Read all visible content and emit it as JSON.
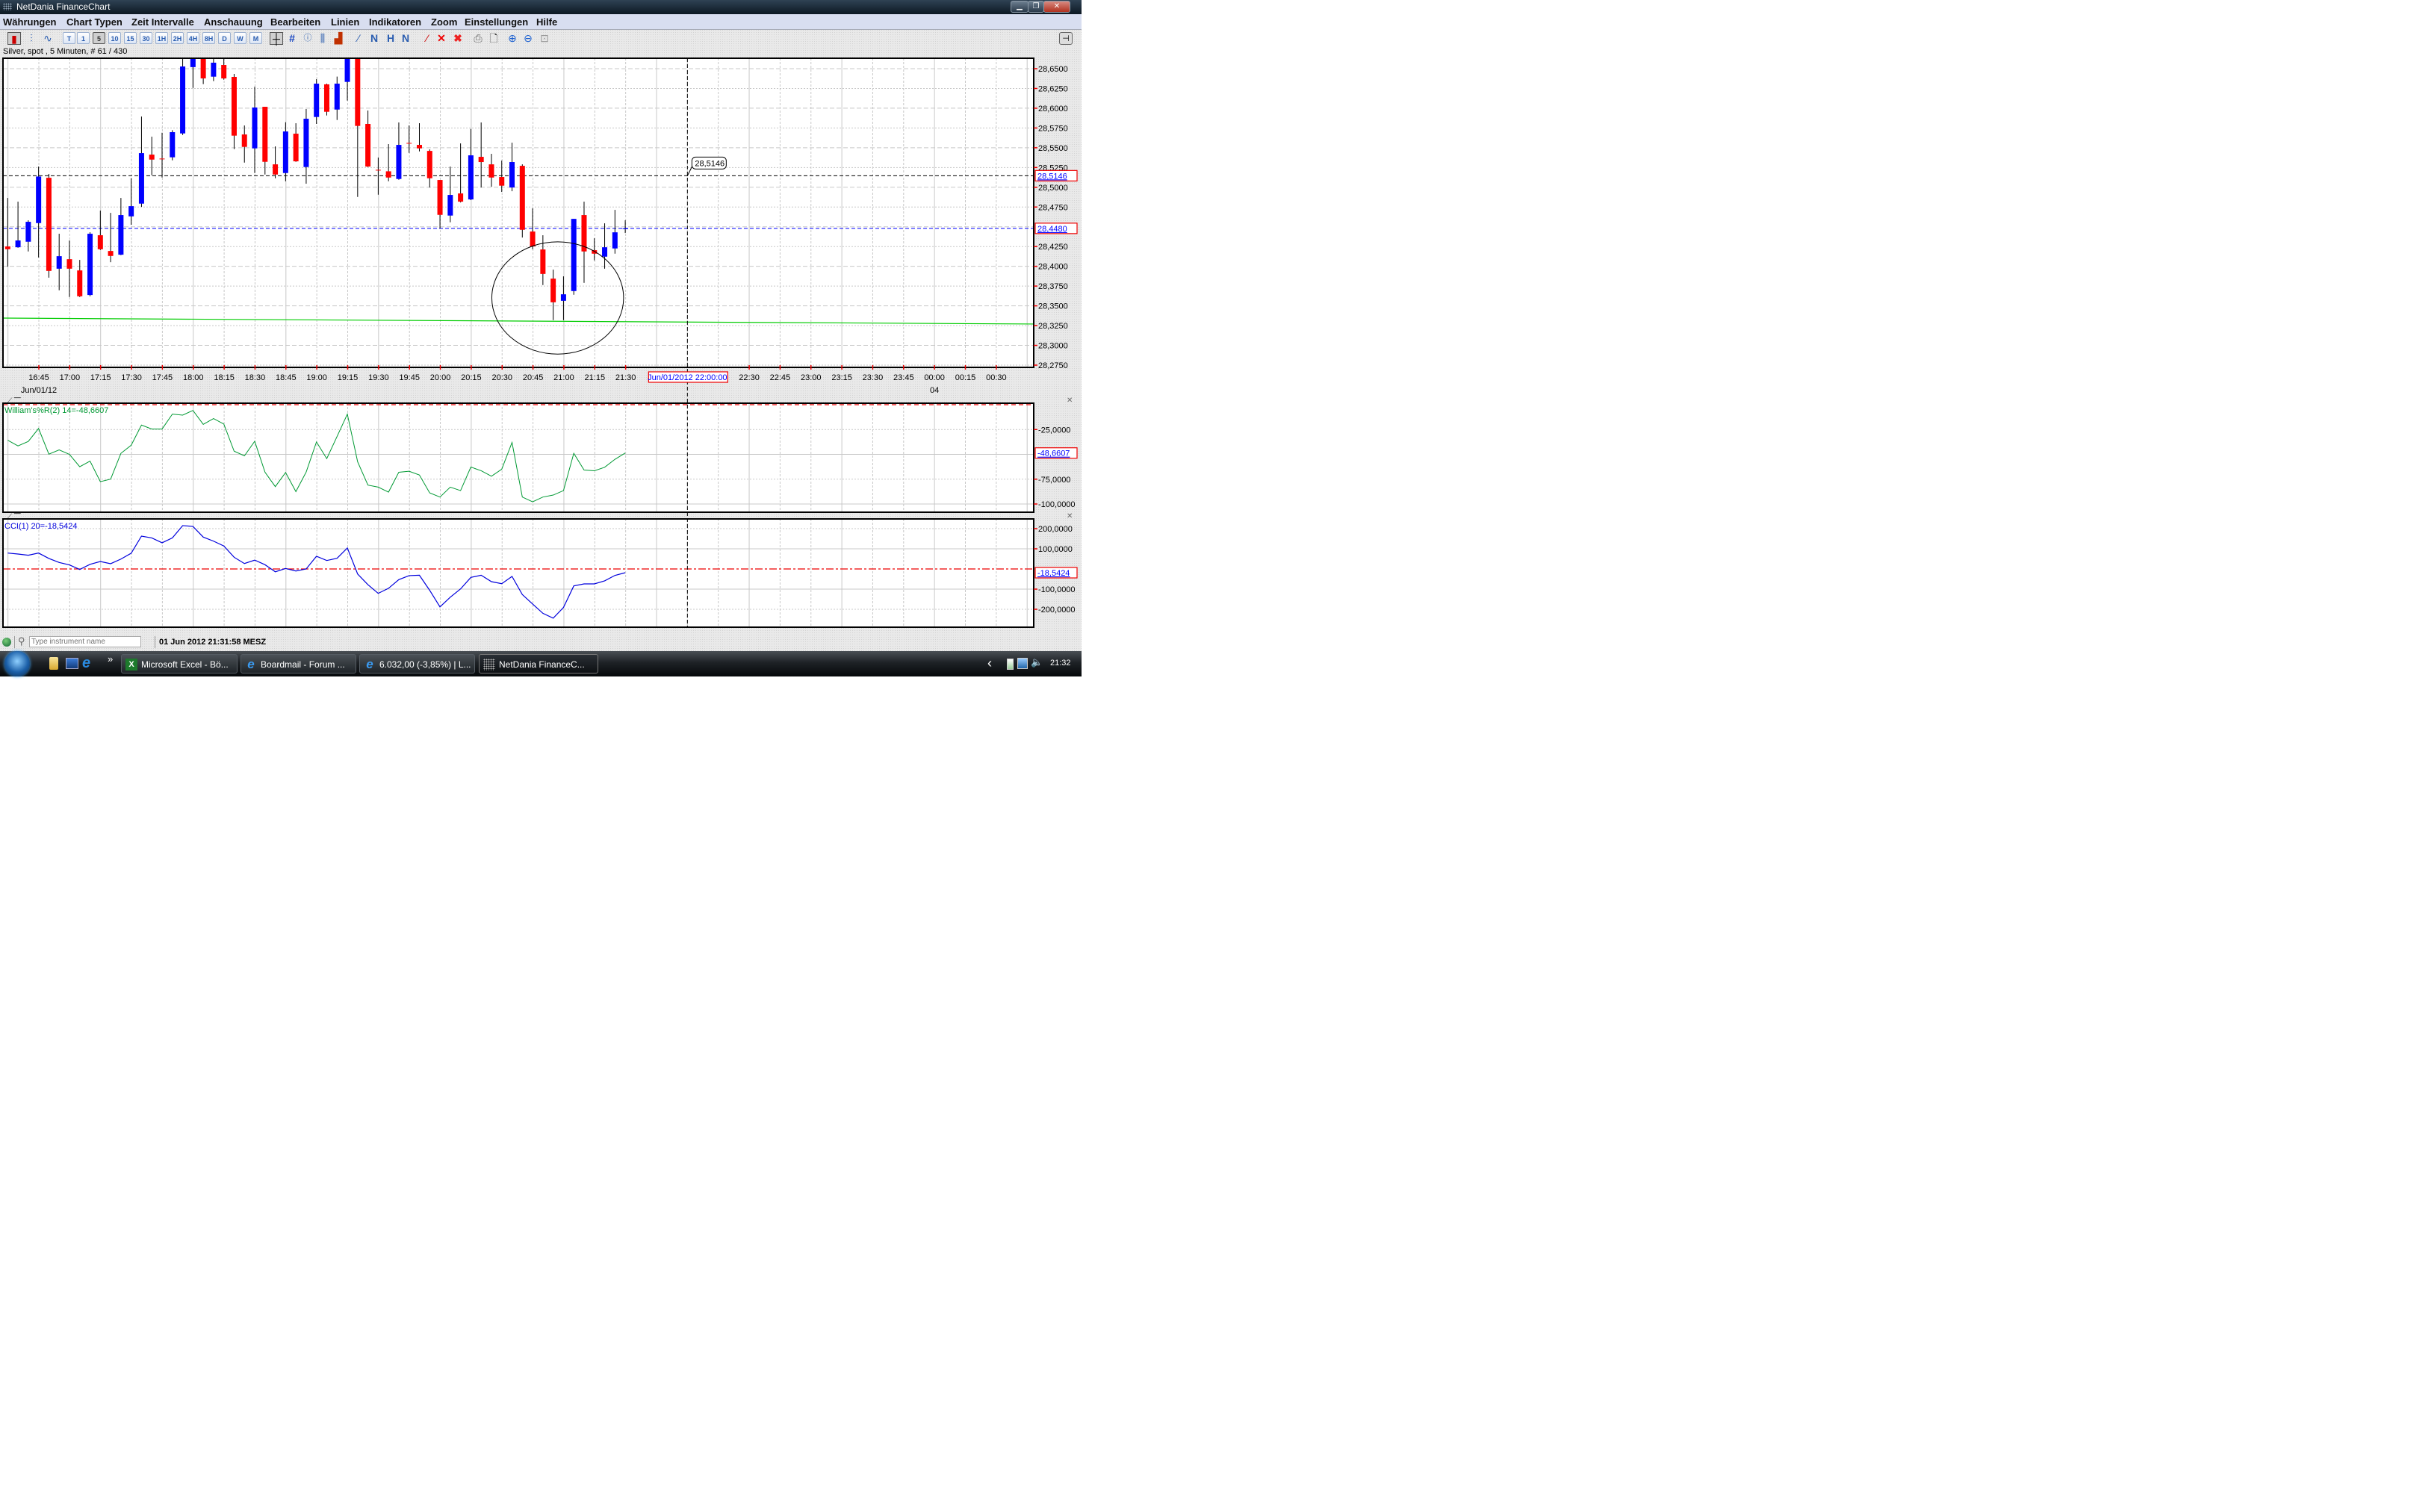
{
  "window": {
    "title": "NetDania FinanceChart",
    "buttons": [
      "minimize",
      "restore",
      "close"
    ]
  },
  "menu": [
    "Währungen",
    "Chart Typen",
    "Zeit Intervalle",
    "Anschauung",
    "Bearbeiten",
    "Linien",
    "Indikatoren",
    "Zoom",
    "Einstellungen",
    "Hilfe"
  ],
  "toolbar": {
    "chart_type_icons": [
      "candlestick-icon",
      "bar-chart-icon",
      "line-chart-icon"
    ],
    "intervals": [
      "T",
      "1",
      "5",
      "10",
      "15",
      "30",
      "1H",
      "2H",
      "4H",
      "8H",
      "D",
      "W",
      "M"
    ],
    "selected_interval": "5",
    "tool_icons": [
      "crosshair-icon",
      "grid-icon",
      "info-icon",
      "volume-icon",
      "histogram-icon",
      "trendline-icon",
      "fibonacci-icon",
      "channel-icon",
      "gann-icon",
      "erase-line-icon",
      "delete-icon",
      "delete-all-icon",
      "print-icon",
      "print-preview-icon",
      "zoom-in-icon",
      "zoom-out-icon",
      "zoom-reset-icon"
    ],
    "pin_icon": "pin-icon"
  },
  "instrument_label": "Silver, spot , 5 Minuten, # 61 / 430",
  "chart_data": [
    {
      "type": "candlestick",
      "title": "Silver, spot , 5 Minuten, # 61 / 430",
      "ylim": [
        28.275,
        28.66
      ],
      "y_ticks": [
        "28,6500",
        "28,6250",
        "28,6000",
        "28,5750",
        "28,5500",
        "28,5250",
        "28,5000",
        "28,4750",
        "28,4250",
        "28,4000",
        "28,3750",
        "28,3500",
        "28,3250",
        "28,3000",
        "28,2750"
      ],
      "y_tick_values": [
        28.65,
        28.625,
        28.6,
        28.575,
        28.55,
        28.525,
        28.5,
        28.475,
        28.425,
        28.4,
        28.375,
        28.35,
        28.325,
        28.3,
        28.275
      ],
      "x_ticks": [
        "16:45",
        "17:00",
        "17:15",
        "17:30",
        "17:45",
        "18:00",
        "18:15",
        "18:30",
        "18:45",
        "19:00",
        "19:15",
        "19:30",
        "19:45",
        "20:00",
        "20:15",
        "20:30",
        "20:45",
        "21:00",
        "21:15",
        "21:30",
        "22:30",
        "22:45",
        "23:00",
        "23:15",
        "23:30",
        "23:45",
        "00:00",
        "00:15",
        "00:30"
      ],
      "date_label": "Jun/01/12",
      "next_day_label": "04",
      "grid": true,
      "up_color": "#0000ff",
      "down_color": "#ff0000",
      "x_start": "16:30",
      "ohlc": [
        [
          28.4251,
          28.4865,
          28.3996,
          28.4216
        ],
        [
          28.4241,
          28.4818,
          28.4235,
          28.4327
        ],
        [
          28.4311,
          28.4582,
          28.4188,
          28.4563
        ],
        [
          28.4547,
          28.5262,
          28.4112,
          28.5136
        ],
        [
          28.512,
          28.5168,
          28.3857,
          28.3942
        ],
        [
          28.397,
          28.4412,
          28.3697,
          28.4128
        ],
        [
          28.409,
          28.4327,
          28.3611,
          28.397
        ],
        [
          28.3948,
          28.4081,
          28.3611,
          28.3621
        ],
        [
          28.3637,
          28.4431,
          28.3621,
          28.4412
        ],
        [
          28.4393,
          28.4705,
          28.4207,
          28.4216
        ],
        [
          28.4194,
          28.4676,
          28.4052,
          28.4131
        ],
        [
          28.4147,
          28.4865,
          28.4141,
          28.4648
        ],
        [
          28.4632,
          28.5114,
          28.4525,
          28.4761
        ],
        [
          28.4793,
          28.5895,
          28.4752,
          28.5432
        ],
        [
          28.5413,
          28.564,
          28.5152,
          28.535
        ],
        [
          28.5363,
          28.569,
          28.5123,
          28.536
        ],
        [
          28.5379,
          28.5722,
          28.5341,
          28.5697
        ],
        [
          28.5681,
          28.67,
          28.5662,
          28.6528
        ],
        [
          28.652,
          28.67,
          28.6257,
          28.665
        ],
        [
          28.665,
          28.67,
          28.6305,
          28.6377
        ],
        [
          28.6399,
          28.665,
          28.6343,
          28.6576
        ],
        [
          28.6547,
          28.665,
          28.6361,
          28.6377
        ],
        [
          28.6396,
          28.6434,
          28.5483,
          28.5653
        ],
        [
          28.5668,
          28.5782,
          28.5312,
          28.5511
        ],
        [
          28.5492,
          28.6273,
          28.518,
          28.6009
        ],
        [
          28.6018,
          28.6018,
          28.5161,
          28.5322
        ],
        [
          28.529,
          28.5517,
          28.5114,
          28.5161
        ],
        [
          28.518,
          28.5823,
          28.5076,
          28.5706
        ],
        [
          28.5678,
          28.581,
          28.5322,
          28.5328
        ],
        [
          28.5256,
          28.599,
          28.5045,
          28.5867
        ],
        [
          28.5889,
          28.6368,
          28.5801,
          28.6311
        ],
        [
          28.6302,
          28.6311,
          28.5908,
          28.5955
        ],
        [
          28.5983,
          28.64,
          28.5851,
          28.6311
        ],
        [
          28.6333,
          28.67,
          28.6097,
          28.665
        ],
        [
          28.665,
          28.67,
          28.4878,
          28.5776
        ],
        [
          28.5801,
          28.5971,
          28.5256,
          28.5262
        ],
        [
          28.5221,
          28.5376,
          28.4906,
          28.5221
        ],
        [
          28.5202,
          28.5546,
          28.5076,
          28.5123
        ],
        [
          28.5105,
          28.582,
          28.5095,
          28.5536
        ],
        [
          28.5561,
          28.5782,
          28.5435,
          28.5558
        ],
        [
          28.5536,
          28.581,
          28.5454,
          28.5492
        ],
        [
          28.546,
          28.5479,
          28.4997,
          28.5114
        ],
        [
          28.5092,
          28.5092,
          28.4478,
          28.4651
        ],
        [
          28.4642,
          28.5262,
          28.4557,
          28.4903
        ],
        [
          28.4922,
          28.5555,
          28.4808,
          28.4818
        ],
        [
          28.4846,
          28.5738,
          28.4837,
          28.5404
        ],
        [
          28.5385,
          28.582,
          28.4997,
          28.5319
        ],
        [
          28.529,
          28.5423,
          28.5007,
          28.5123
        ],
        [
          28.513,
          28.5338,
          28.4941,
          28.502
        ],
        [
          28.4997,
          28.5564,
          28.495,
          28.5319
        ],
        [
          28.5271,
          28.529,
          28.4364,
          28.4462
        ],
        [
          28.444,
          28.4733,
          28.4216,
          28.4251
        ],
        [
          28.4213,
          28.4393,
          28.3763,
          28.3904
        ],
        [
          28.3844,
          28.3958,
          28.3319,
          28.3545
        ],
        [
          28.3564,
          28.3873,
          28.3319,
          28.3646
        ],
        [
          28.3687,
          28.46,
          28.364,
          28.46
        ],
        [
          28.4648,
          28.4818,
          28.3791,
          28.4188
        ],
        [
          28.4204,
          28.4355,
          28.4075,
          28.416
        ],
        [
          28.4122,
          28.4544,
          28.397,
          28.4241
        ],
        [
          28.4226,
          28.4714,
          28.416,
          28.443
        ],
        [
          28.447,
          28.4582,
          28.4421,
          28.448
        ]
      ],
      "current_price": {
        "label": "28,4480",
        "value": 28.448,
        "color": "#0000ff"
      },
      "crosshair": {
        "time": "22:00",
        "time_label": "Jun/01/2012 22:00:00",
        "price": 28.5146,
        "price_label": "28,5146",
        "tooltip": "28,5146"
      },
      "reference_line": {
        "from": 28.3345,
        "to": 28.327,
        "color": "#00cc00"
      },
      "ellipse_annotation": {
        "center_time": "20:57",
        "center_price": 28.36,
        "half_width_minutes": 32,
        "half_height": 0.071
      }
    },
    {
      "type": "line",
      "legend": "William's%R(2) 14=-48,6607",
      "color": "#009933",
      "ylim": [
        -100,
        0
      ],
      "y_ticks": [
        "-25,0000",
        "-75,0000",
        "-100,0000"
      ],
      "y_tick_values": [
        -25,
        -75,
        -100
      ],
      "last_label": "-48,6607",
      "level_line": 0,
      "values": [
        -35.8,
        -41.5,
        -37,
        -24,
        -49.8,
        -45.5,
        -50,
        -62.5,
        -56.8,
        -77.5,
        -75,
        -49,
        -40.8,
        -20.5,
        -24.5,
        -24.5,
        -9.5,
        -10.5,
        -5.8,
        -19.8,
        -14,
        -19.5,
        -46.8,
        -51.5,
        -36.8,
        -68,
        -82.5,
        -68.3,
        -87.5,
        -67.8,
        -37.5,
        -54.3,
        -32,
        -9.5,
        -57.5,
        -81,
        -83,
        -88,
        -68,
        -67,
        -70.8,
        -88.8,
        -93,
        -83,
        -86.5,
        -62.8,
        -66.5,
        -72,
        -65,
        -38,
        -93,
        -97.8,
        -93,
        -91,
        -86.5,
        -49,
        -65.8,
        -66.5,
        -63,
        -55,
        -48.66
      ]
    },
    {
      "type": "line",
      "legend": "CCI(1) 20=-18,5424",
      "color": "#0000dd",
      "ylim": [
        -260,
        250
      ],
      "y_ticks": [
        "200,0000",
        "100,0000",
        "-100,0000",
        "-200,0000"
      ],
      "y_tick_values": [
        200,
        100,
        -100,
        -200
      ],
      "last_label": "-18,5424",
      "level_line": 0,
      "values": [
        79,
        74,
        68,
        79,
        52,
        32,
        20,
        -2.5,
        23,
        37,
        26,
        49,
        78,
        163,
        154,
        130,
        154,
        215,
        211,
        158,
        138,
        114,
        58,
        27,
        44,
        21,
        -14,
        2.5,
        -10,
        0,
        63,
        42,
        53,
        104,
        -25,
        -78,
        -121,
        -96,
        -53,
        -33,
        -31,
        -106,
        -188,
        -140,
        -99,
        -42,
        -31,
        -63,
        -73,
        -37,
        -127,
        -174,
        -220,
        -244,
        -191,
        -84,
        -74,
        -74,
        -59,
        -32,
        -18.54
      ]
    }
  ],
  "status": {
    "connection_icon": "connection-status-icon",
    "search_placeholder": "Type instrument name",
    "datetime": "01 Jun 2012 21:31:58 MESZ"
  },
  "taskbar": {
    "quick_launch": [
      "folder-icon",
      "show-desktop-icon",
      "internet-explorer-icon"
    ],
    "more": "»",
    "tasks": [
      {
        "label": "Microsoft Excel - Bö...",
        "icon": "excel-icon"
      },
      {
        "label": "Boardmail - Forum ...",
        "icon": "internet-explorer-icon"
      },
      {
        "label": "6.032,00 (-3,85%) | L...",
        "icon": "internet-explorer-icon"
      },
      {
        "label": "NetDania FinanceC...",
        "icon": "netdania-icon",
        "active": true
      }
    ],
    "tray_arrow": "‹",
    "clock": "21:32"
  }
}
